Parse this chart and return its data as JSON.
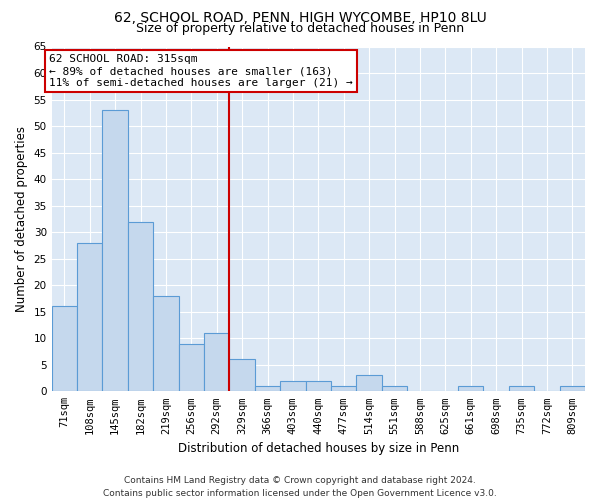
{
  "title_line1": "62, SCHOOL ROAD, PENN, HIGH WYCOMBE, HP10 8LU",
  "title_line2": "Size of property relative to detached houses in Penn",
  "xlabel": "Distribution of detached houses by size in Penn",
  "ylabel": "Number of detached properties",
  "footer_line1": "Contains HM Land Registry data © Crown copyright and database right 2024.",
  "footer_line2": "Contains public sector information licensed under the Open Government Licence v3.0.",
  "categories": [
    "71sqm",
    "108sqm",
    "145sqm",
    "182sqm",
    "219sqm",
    "256sqm",
    "292sqm",
    "329sqm",
    "366sqm",
    "403sqm",
    "440sqm",
    "477sqm",
    "514sqm",
    "551sqm",
    "588sqm",
    "625sqm",
    "661sqm",
    "698sqm",
    "735sqm",
    "772sqm",
    "809sqm"
  ],
  "values": [
    16,
    28,
    53,
    32,
    18,
    9,
    11,
    6,
    1,
    2,
    2,
    1,
    3,
    1,
    0,
    0,
    1,
    0,
    1,
    0,
    1
  ],
  "bar_color": "#c5d8ed",
  "bar_edge_color": "#5b9bd5",
  "background_color": "#dce8f5",
  "vline_x_index": 7,
  "vline_color": "#cc0000",
  "annotation_text_line1": "62 SCHOOL ROAD: 315sqm",
  "annotation_text_line2": "← 89% of detached houses are smaller (163)",
  "annotation_text_line3": "11% of semi-detached houses are larger (21) →",
  "annotation_box_color": "#cc0000",
  "ylim": [
    0,
    65
  ],
  "yticks": [
    0,
    5,
    10,
    15,
    20,
    25,
    30,
    35,
    40,
    45,
    50,
    55,
    60,
    65
  ],
  "grid_color": "#ffffff",
  "title_fontsize": 10,
  "subtitle_fontsize": 9,
  "axis_label_fontsize": 8.5,
  "tick_fontsize": 7.5,
  "annotation_fontsize": 8,
  "footer_fontsize": 6.5
}
